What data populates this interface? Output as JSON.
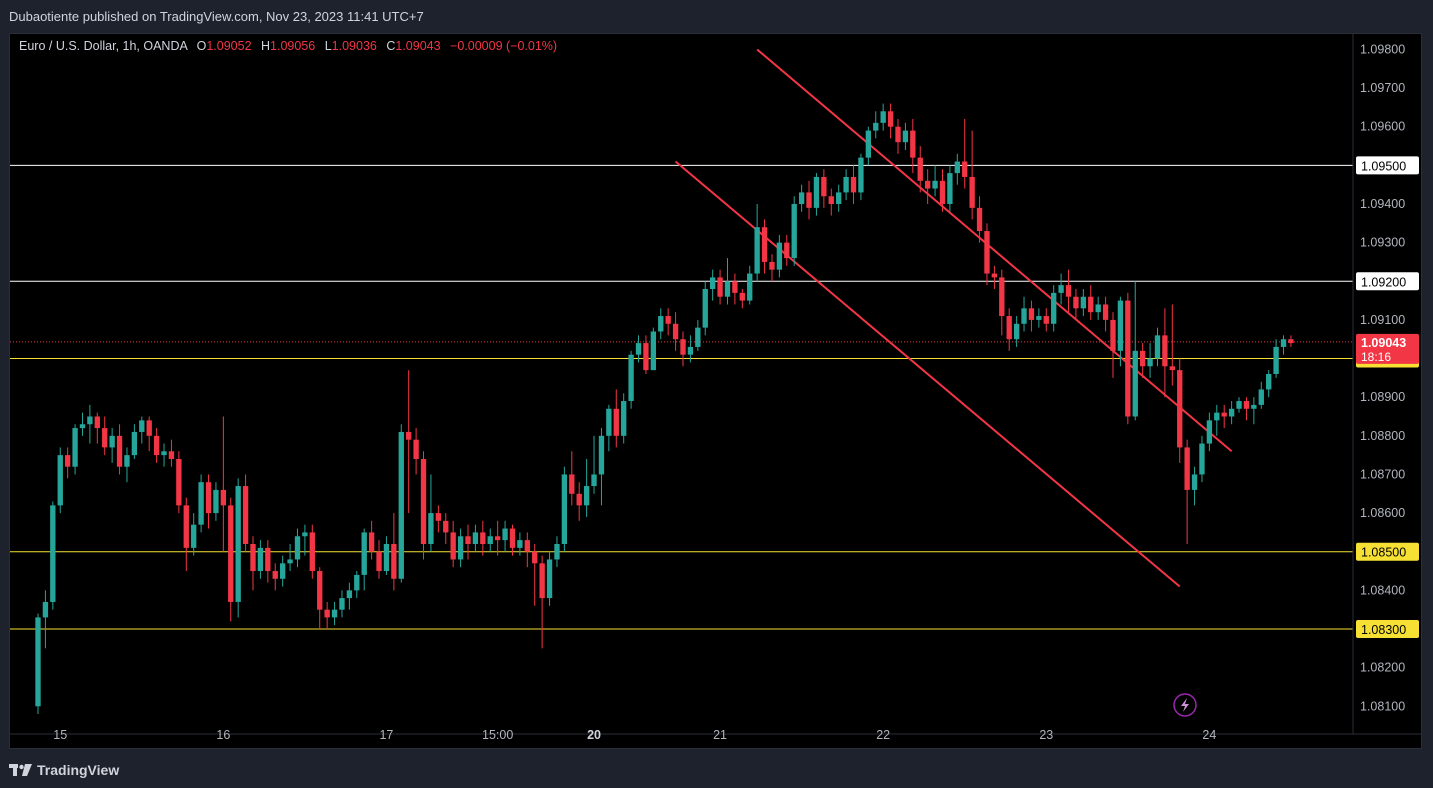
{
  "header": {
    "publisher_line": "Dubaotiente published on TradingView.com, Nov 23, 2023 11:41 UTC+7"
  },
  "legend": {
    "symbol": "Euro / U.S. Dollar, 1h, OANDA",
    "o_label": "O",
    "o_value": "1.09052",
    "h_label": "H",
    "h_value": "1.09056",
    "l_label": "L",
    "l_value": "1.09036",
    "c_label": "C",
    "c_value": "1.09043",
    "change": "−0.00009 (−0.01%)"
  },
  "footer": {
    "brand": "TradingView"
  },
  "colors": {
    "up": "#26a69a",
    "down": "#f23645",
    "channel": "#f23645",
    "white_level": "#ffffff",
    "yellow_level": "#f7e034",
    "bg": "#000000"
  },
  "icons": {
    "alert": "lightning-icon",
    "brand": "tradingview-logo-icon"
  },
  "chart_data": {
    "type": "candlestick",
    "ylim": [
      1.0808,
      1.0984
    ],
    "x_range": [
      0,
      174
    ],
    "y_ticks": [
      "1.09800",
      "1.09700",
      "1.09600",
      "1.09400",
      "1.09300",
      "1.09100",
      "1.08900",
      "1.08800",
      "1.08700",
      "1.08600",
      "1.08400",
      "1.08200",
      "1.08100"
    ],
    "x_ticks": [
      {
        "label": "15",
        "bar": 3
      },
      {
        "label": "16",
        "bar": 25
      },
      {
        "label": "17",
        "bar": 47
      },
      {
        "label": "15:00",
        "bar": 62
      },
      {
        "label": "20",
        "bar": 75
      },
      {
        "label": "21",
        "bar": 92
      },
      {
        "label": "22",
        "bar": 114
      },
      {
        "label": "23",
        "bar": 136
      },
      {
        "label": "24",
        "bar": 158
      }
    ],
    "x_bold_ticks": [
      "20"
    ],
    "levels": [
      {
        "value": "1.09500",
        "color": "white"
      },
      {
        "value": "1.09200",
        "color": "white"
      },
      {
        "value": "1.09000",
        "color": "yellow"
      },
      {
        "value": "1.08500",
        "color": "yellow"
      },
      {
        "value": "1.08300",
        "color": "yellow"
      }
    ],
    "last_price": {
      "value": "1.09043",
      "countdown": "18:16"
    },
    "channel": {
      "upper": [
        [
          97,
          1.098
        ],
        [
          161,
          1.0876
        ]
      ],
      "lower": [
        [
          86,
          1.0951
        ],
        [
          154,
          1.0841
        ]
      ]
    },
    "candles": [
      [
        1.081,
        1.0833,
        1.0808,
        1.0834
      ],
      [
        1.0833,
        1.0837,
        1.0825,
        1.084
      ],
      [
        1.0837,
        1.0862,
        1.0835,
        1.0863
      ],
      [
        1.0862,
        1.0875,
        1.086,
        1.0877
      ],
      [
        1.0875,
        1.0872,
        1.0869,
        1.0877
      ],
      [
        1.0872,
        1.0882,
        1.087,
        1.0883
      ],
      [
        1.0882,
        1.0883,
        1.088,
        1.0886
      ],
      [
        1.0883,
        1.0885,
        1.0878,
        1.0888
      ],
      [
        1.0885,
        1.0882,
        1.0878,
        1.0886
      ],
      [
        1.0882,
        1.0877,
        1.0875,
        1.0885
      ],
      [
        1.0877,
        1.088,
        1.0873,
        1.0882
      ],
      [
        1.088,
        1.0872,
        1.087,
        1.0883
      ],
      [
        1.0872,
        1.0875,
        1.0868,
        1.0877
      ],
      [
        1.0875,
        1.0881,
        1.0874,
        1.0883
      ],
      [
        1.0881,
        1.0884,
        1.0878,
        1.0885
      ],
      [
        1.0884,
        1.088,
        1.0876,
        1.0885
      ],
      [
        1.088,
        1.0875,
        1.0873,
        1.0882
      ],
      [
        1.0875,
        1.0876,
        1.0872,
        1.0878
      ],
      [
        1.0876,
        1.0874,
        1.0872,
        1.0879
      ],
      [
        1.0874,
        1.0862,
        1.086,
        1.0876
      ],
      [
        1.0862,
        1.0851,
        1.0845,
        1.0864
      ],
      [
        1.0851,
        1.0857,
        1.0849,
        1.086
      ],
      [
        1.0857,
        1.0868,
        1.0855,
        1.087
      ],
      [
        1.0868,
        1.086,
        1.0856,
        1.087
      ],
      [
        1.086,
        1.0866,
        1.0858,
        1.0868
      ],
      [
        1.0866,
        1.0862,
        1.085,
        1.0885
      ],
      [
        1.0862,
        1.0837,
        1.0832,
        1.0864
      ],
      [
        1.0837,
        1.0867,
        1.0833,
        1.0869
      ],
      [
        1.0867,
        1.0852,
        1.085,
        1.087
      ],
      [
        1.0852,
        1.0845,
        1.084,
        1.0854
      ],
      [
        1.0845,
        1.0851,
        1.0843,
        1.0853
      ],
      [
        1.0851,
        1.0845,
        1.0842,
        1.0853
      ],
      [
        1.0845,
        1.0843,
        1.084,
        1.0847
      ],
      [
        1.0843,
        1.0847,
        1.0841,
        1.0849
      ],
      [
        1.0847,
        1.0848,
        1.0845,
        1.0852
      ],
      [
        1.0848,
        1.0854,
        1.0846,
        1.0856
      ],
      [
        1.0854,
        1.0855,
        1.0849,
        1.0857
      ],
      [
        1.0855,
        1.0845,
        1.0843,
        1.0857
      ],
      [
        1.0845,
        1.0835,
        1.083,
        1.0846
      ],
      [
        1.0835,
        1.0833,
        1.083,
        1.0837
      ],
      [
        1.0833,
        1.0835,
        1.0831,
        1.0837
      ],
      [
        1.0835,
        1.0838,
        1.0833,
        1.084
      ],
      [
        1.0838,
        1.084,
        1.0835,
        1.0842
      ],
      [
        1.084,
        1.0844,
        1.0838,
        1.0845
      ],
      [
        1.0844,
        1.0855,
        1.084,
        1.0856
      ],
      [
        1.0855,
        1.085,
        1.0848,
        1.0858
      ],
      [
        1.085,
        1.0845,
        1.0843,
        1.0853
      ],
      [
        1.0845,
        1.0852,
        1.0844,
        1.0854
      ],
      [
        1.0852,
        1.0843,
        1.084,
        1.086
      ],
      [
        1.0843,
        1.0881,
        1.0842,
        1.0883
      ],
      [
        1.0881,
        1.0879,
        1.086,
        1.0897
      ],
      [
        1.0879,
        1.0874,
        1.087,
        1.0882
      ],
      [
        1.0874,
        1.0852,
        1.0848,
        1.0876
      ],
      [
        1.0852,
        1.086,
        1.085,
        1.087
      ],
      [
        1.086,
        1.0858,
        1.0855,
        1.0862
      ],
      [
        1.0858,
        1.0855,
        1.0852,
        1.086
      ],
      [
        1.0855,
        1.0848,
        1.0846,
        1.0858
      ],
      [
        1.0848,
        1.0854,
        1.0846,
        1.0856
      ],
      [
        1.0854,
        1.0852,
        1.0848,
        1.0857
      ],
      [
        1.0852,
        1.0855,
        1.085,
        1.0857
      ],
      [
        1.0855,
        1.0852,
        1.0849,
        1.0858
      ],
      [
        1.0852,
        1.0854,
        1.085,
        1.0856
      ],
      [
        1.0854,
        1.0853,
        1.0849,
        1.0858
      ],
      [
        1.0853,
        1.0856,
        1.085,
        1.0858
      ],
      [
        1.0856,
        1.0851,
        1.0849,
        1.0857
      ],
      [
        1.0851,
        1.0853,
        1.0849,
        1.0855
      ],
      [
        1.0853,
        1.085,
        1.0846,
        1.0855
      ],
      [
        1.085,
        1.0847,
        1.0836,
        1.0852
      ],
      [
        1.0847,
        1.0838,
        1.0825,
        1.0849
      ],
      [
        1.0838,
        1.0848,
        1.0836,
        1.085
      ],
      [
        1.0848,
        1.0852,
        1.0846,
        1.0854
      ],
      [
        1.0852,
        1.087,
        1.085,
        1.0872
      ],
      [
        1.087,
        1.0865,
        1.0862,
        1.0876
      ],
      [
        1.0865,
        1.0862,
        1.0858,
        1.0868
      ],
      [
        1.0862,
        1.0867,
        1.0859,
        1.0874
      ],
      [
        1.0867,
        1.087,
        1.0865,
        1.088
      ],
      [
        1.087,
        1.088,
        1.0862,
        1.0882
      ],
      [
        1.088,
        1.0887,
        1.0876,
        1.0888
      ],
      [
        1.0887,
        1.088,
        1.0877,
        1.0892
      ],
      [
        1.088,
        1.0889,
        1.0878,
        1.0891
      ],
      [
        1.0889,
        1.0901,
        1.0887,
        1.0902
      ],
      [
        1.0901,
        1.0904,
        1.0899,
        1.0906
      ],
      [
        1.0904,
        1.0897,
        1.0896,
        1.0906
      ],
      [
        1.0897,
        1.0907,
        1.0897,
        1.0908
      ],
      [
        1.0907,
        1.0911,
        1.0905,
        1.0913
      ],
      [
        1.0911,
        1.0909,
        1.0906,
        1.0913
      ],
      [
        1.0909,
        1.0905,
        1.0902,
        1.0912
      ],
      [
        1.0905,
        1.0901,
        1.0898,
        1.0907
      ],
      [
        1.0901,
        1.0903,
        1.0899,
        1.0906
      ],
      [
        1.0903,
        1.0908,
        1.0902,
        1.091
      ],
      [
        1.0908,
        1.0918,
        1.0906,
        1.092
      ],
      [
        1.0918,
        1.0921,
        1.0915,
        1.0923
      ],
      [
        1.0921,
        1.0916,
        1.0914,
        1.0923
      ],
      [
        1.0916,
        1.092,
        1.0914,
        1.0926
      ],
      [
        1.092,
        1.0917,
        1.0914,
        1.0922
      ],
      [
        1.0917,
        1.0915,
        1.0913,
        1.0918
      ],
      [
        1.0915,
        1.0922,
        1.0914,
        1.0924
      ],
      [
        1.0922,
        1.0934,
        1.092,
        1.094
      ],
      [
        1.0934,
        1.0925,
        1.0922,
        1.0936
      ],
      [
        1.0925,
        1.0923,
        1.092,
        1.0927
      ],
      [
        1.0923,
        1.093,
        1.0921,
        1.0932
      ],
      [
        1.093,
        1.0926,
        1.0924,
        1.0932
      ],
      [
        1.0926,
        1.094,
        1.0924,
        1.0942
      ],
      [
        1.094,
        1.0943,
        1.0938,
        1.0945
      ],
      [
        1.0943,
        1.0939,
        1.0936,
        1.0946
      ],
      [
        1.0939,
        1.0947,
        1.0937,
        1.0948
      ],
      [
        1.0947,
        1.0942,
        1.0939,
        1.0949
      ],
      [
        1.0942,
        1.094,
        1.0937,
        1.0944
      ],
      [
        1.094,
        1.0943,
        1.0938,
        1.0945
      ],
      [
        1.0943,
        1.0947,
        1.0941,
        1.0949
      ],
      [
        1.0947,
        1.0943,
        1.094,
        1.095
      ],
      [
        1.0943,
        1.0952,
        1.0941,
        1.0953
      ],
      [
        1.0952,
        1.0959,
        1.095,
        1.096
      ],
      [
        1.0959,
        1.0961,
        1.0957,
        1.0964
      ],
      [
        1.0961,
        1.0964,
        1.0959,
        1.0966
      ],
      [
        1.0964,
        1.096,
        1.0957,
        1.0966
      ],
      [
        1.096,
        1.0956,
        1.0953,
        1.0962
      ],
      [
        1.0956,
        1.0959,
        1.0954,
        1.0961
      ],
      [
        1.0959,
        1.0952,
        1.0948,
        1.0962
      ],
      [
        1.0952,
        1.0946,
        1.0943,
        1.0955
      ],
      [
        1.0946,
        1.0944,
        1.094,
        1.0949
      ],
      [
        1.0944,
        1.0946,
        1.0942,
        1.095
      ],
      [
        1.0946,
        1.094,
        1.0938,
        1.0949
      ],
      [
        1.094,
        1.0948,
        1.0938,
        1.095
      ],
      [
        1.0948,
        1.0951,
        1.0945,
        1.0953
      ],
      [
        1.0951,
        1.0947,
        1.0944,
        1.0962
      ],
      [
        1.0947,
        1.0939,
        1.0936,
        1.0959
      ],
      [
        1.0939,
        1.0933,
        1.093,
        1.0942
      ],
      [
        1.0933,
        1.0922,
        1.0919,
        1.0935
      ],
      [
        1.0922,
        1.0921,
        1.0918,
        1.0924
      ],
      [
        1.0921,
        1.0911,
        1.0906,
        1.0923
      ],
      [
        1.0911,
        1.0905,
        1.0902,
        1.0913
      ],
      [
        1.0905,
        1.0909,
        1.0903,
        1.0911
      ],
      [
        1.0909,
        1.0913,
        1.0907,
        1.0916
      ],
      [
        1.0913,
        1.091,
        1.0907,
        1.0915
      ],
      [
        1.091,
        1.0911,
        1.0908,
        1.0913
      ],
      [
        1.0911,
        1.0909,
        1.0907,
        1.0913
      ],
      [
        1.0909,
        1.0917,
        1.0907,
        1.0919
      ],
      [
        1.0917,
        1.0919,
        1.0914,
        1.0922
      ],
      [
        1.0919,
        1.0916,
        1.0912,
        1.0923
      ],
      [
        1.0916,
        1.0913,
        1.091,
        1.0918
      ],
      [
        1.0913,
        1.0916,
        1.0911,
        1.0918
      ],
      [
        1.0916,
        1.0912,
        1.091,
        1.0919
      ],
      [
        1.0912,
        1.0914,
        1.091,
        1.0916
      ],
      [
        1.0914,
        1.091,
        1.0907,
        1.0916
      ],
      [
        1.091,
        1.0902,
        1.0895,
        1.0912
      ],
      [
        1.0902,
        1.0915,
        1.0898,
        1.0916
      ],
      [
        1.0915,
        1.0885,
        1.0883,
        1.0917
      ],
      [
        1.0885,
        1.0902,
        1.0884,
        1.092
      ],
      [
        1.0902,
        1.0898,
        1.0895,
        1.0904
      ],
      [
        1.0898,
        1.09,
        1.0895,
        1.0904
      ],
      [
        1.09,
        1.0906,
        1.0898,
        1.0908
      ],
      [
        1.0906,
        1.0898,
        1.089,
        1.0913
      ],
      [
        1.0898,
        1.0897,
        1.0893,
        1.0914
      ],
      [
        1.0897,
        1.0877,
        1.0873,
        1.09
      ],
      [
        1.0877,
        1.0866,
        1.0852,
        1.0879
      ],
      [
        1.0866,
        1.087,
        1.0862,
        1.0872
      ],
      [
        1.087,
        1.0878,
        1.0868,
        1.088
      ],
      [
        1.0878,
        1.0884,
        1.0876,
        1.0886
      ],
      [
        1.0884,
        1.0886,
        1.088,
        1.0888
      ],
      [
        1.0886,
        1.0885,
        1.0882,
        1.0888
      ],
      [
        1.0885,
        1.0887,
        1.0883,
        1.0889
      ],
      [
        1.0887,
        1.0889,
        1.0886,
        1.089
      ],
      [
        1.0889,
        1.0887,
        1.0884,
        1.089
      ],
      [
        1.0887,
        1.0888,
        1.0883,
        1.089
      ],
      [
        1.0888,
        1.0892,
        1.0887,
        1.0894
      ],
      [
        1.0892,
        1.0896,
        1.089,
        1.0897
      ],
      [
        1.0896,
        1.0903,
        1.0895,
        1.0905
      ],
      [
        1.0903,
        1.0905,
        1.0901,
        1.0906
      ],
      [
        1.0905,
        1.0904,
        1.0903,
        1.0906
      ]
    ]
  }
}
